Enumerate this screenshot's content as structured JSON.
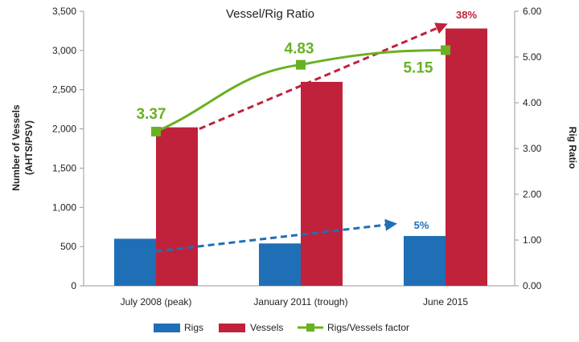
{
  "chart_data": {
    "type": "bar+line",
    "title": "Vessel/Rig Ratio",
    "categories": [
      "July 2008 (peak)",
      "January 2011 (trough)",
      "June 2015"
    ],
    "ylabel_left": "Number of Vessels\n(AHTS/PSV)",
    "ylabel_left_lines": [
      "Number of Vessels",
      "(AHTS/PSV)"
    ],
    "ylabel_right": "Rig Ratio",
    "ylim_left": [
      0,
      3500
    ],
    "ylim_right": [
      0,
      6
    ],
    "left_ticks": [
      "0",
      "500",
      "1,000",
      "1,500",
      "2,000",
      "2,500",
      "3,000",
      "3,500"
    ],
    "left_tick_values": [
      0,
      500,
      1000,
      1500,
      2000,
      2500,
      3000,
      3500
    ],
    "right_ticks": [
      "0.00",
      "1.00",
      "2.00",
      "3.00",
      "4.00",
      "5.00",
      "6.00"
    ],
    "right_tick_values": [
      0,
      1,
      2,
      3,
      4,
      5,
      6
    ],
    "series": [
      {
        "name": "Rigs",
        "axis": "left",
        "kind": "bar",
        "color": "#1f6fb6",
        "values": [
          600,
          540,
          635
        ]
      },
      {
        "name": "Vessels",
        "axis": "left",
        "kind": "bar",
        "color": "#c0223b",
        "values": [
          2020,
          2600,
          3280
        ]
      },
      {
        "name": "Rigs/Vessels factor",
        "axis": "right",
        "kind": "line",
        "color": "#6ab023",
        "values": [
          3.37,
          4.83,
          5.15
        ]
      }
    ],
    "data_labels": [
      "3.37",
      "4.83",
      "5.15"
    ],
    "annotations": [
      {
        "text": "38%",
        "color": "#c0223b",
        "from": [
          0,
          2020
        ],
        "to": [
          2,
          3330
        ],
        "axis": "left"
      },
      {
        "text": "5%",
        "color": "#1f6fb6",
        "from": [
          0,
          440
        ],
        "to": [
          1.65,
          790
        ],
        "axis": "left"
      }
    ],
    "legend": [
      "Rigs",
      "Vessels",
      "Rigs/Vessels factor"
    ],
    "legend_position": "bottom"
  }
}
